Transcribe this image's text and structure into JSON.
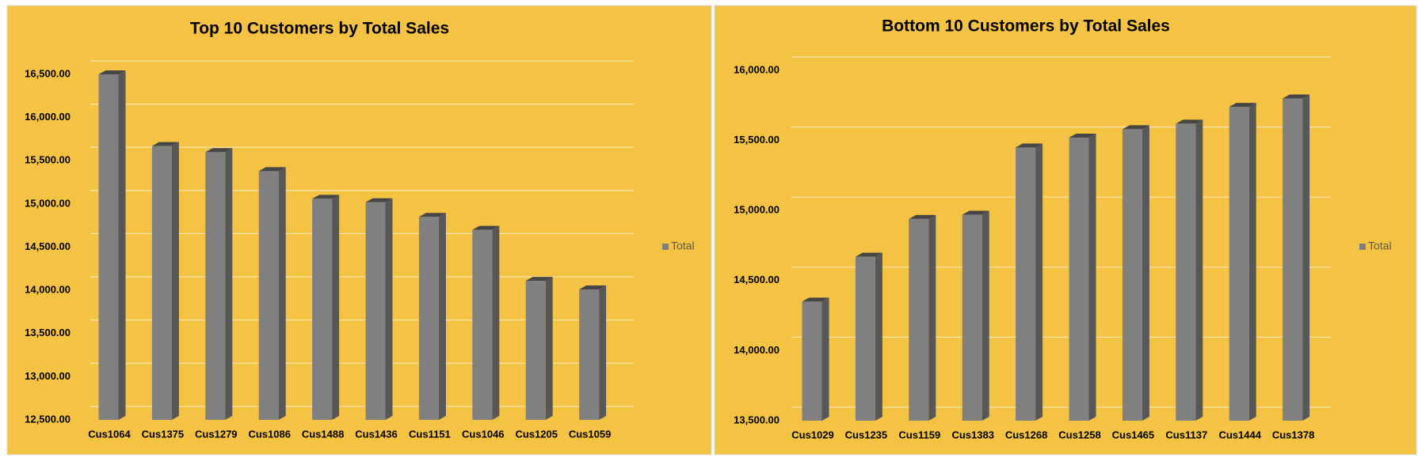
{
  "chart_data": [
    {
      "type": "bar",
      "title": "Top 10 Customers by Total Sales",
      "categories": [
        "Cus1064",
        "Cus1375",
        "Cus1279",
        "Cus1086",
        "Cus1488",
        "Cus1436",
        "Cus1151",
        "Cus1046",
        "Cus1205",
        "Cus1059"
      ],
      "series": [
        {
          "name": "Total",
          "color": "#808080",
          "values": [
            16500,
            15670,
            15600,
            15380,
            15060,
            15020,
            14850,
            14700,
            14110,
            14010
          ]
        }
      ],
      "ylim": [
        12500,
        16500
      ],
      "yticks": [
        {
          "value": 12500,
          "label": "12,500.00"
        },
        {
          "value": 13000,
          "label": "13,000.00"
        },
        {
          "value": 13500,
          "label": "13,500.00"
        },
        {
          "value": 14000,
          "label": "14,000.00"
        },
        {
          "value": 14500,
          "label": "14,500.00"
        },
        {
          "value": 15000,
          "label": "15,000.00"
        },
        {
          "value": 15500,
          "label": "15,500.00"
        },
        {
          "value": 16000,
          "label": "16,000.00"
        },
        {
          "value": 16500,
          "label": "16,500.00"
        }
      ],
      "grid": true,
      "legend": "right"
    },
    {
      "type": "bar",
      "title": "Bottom 10 Customers by Total Sales",
      "categories": [
        "Cus1029",
        "Cus1235",
        "Cus1159",
        "Cus1383",
        "Cus1268",
        "Cus1258",
        "Cus1465",
        "Cus1137",
        "Cus1444",
        "Cus1378"
      ],
      "series": [
        {
          "name": "Total",
          "color": "#808080",
          "values": [
            14350,
            14670,
            14940,
            14970,
            15450,
            15520,
            15580,
            15620,
            15740,
            15800
          ]
        }
      ],
      "ylim": [
        13500,
        16000
      ],
      "yticks": [
        {
          "value": 13500,
          "label": "13,500.00"
        },
        {
          "value": 14000,
          "label": "14,000.00"
        },
        {
          "value": 14500,
          "label": "14,500.00"
        },
        {
          "value": 15000,
          "label": "15,000.00"
        },
        {
          "value": 15500,
          "label": "15,500.00"
        },
        {
          "value": 16000,
          "label": "16,000.00"
        }
      ],
      "grid": true,
      "legend": "right"
    }
  ]
}
